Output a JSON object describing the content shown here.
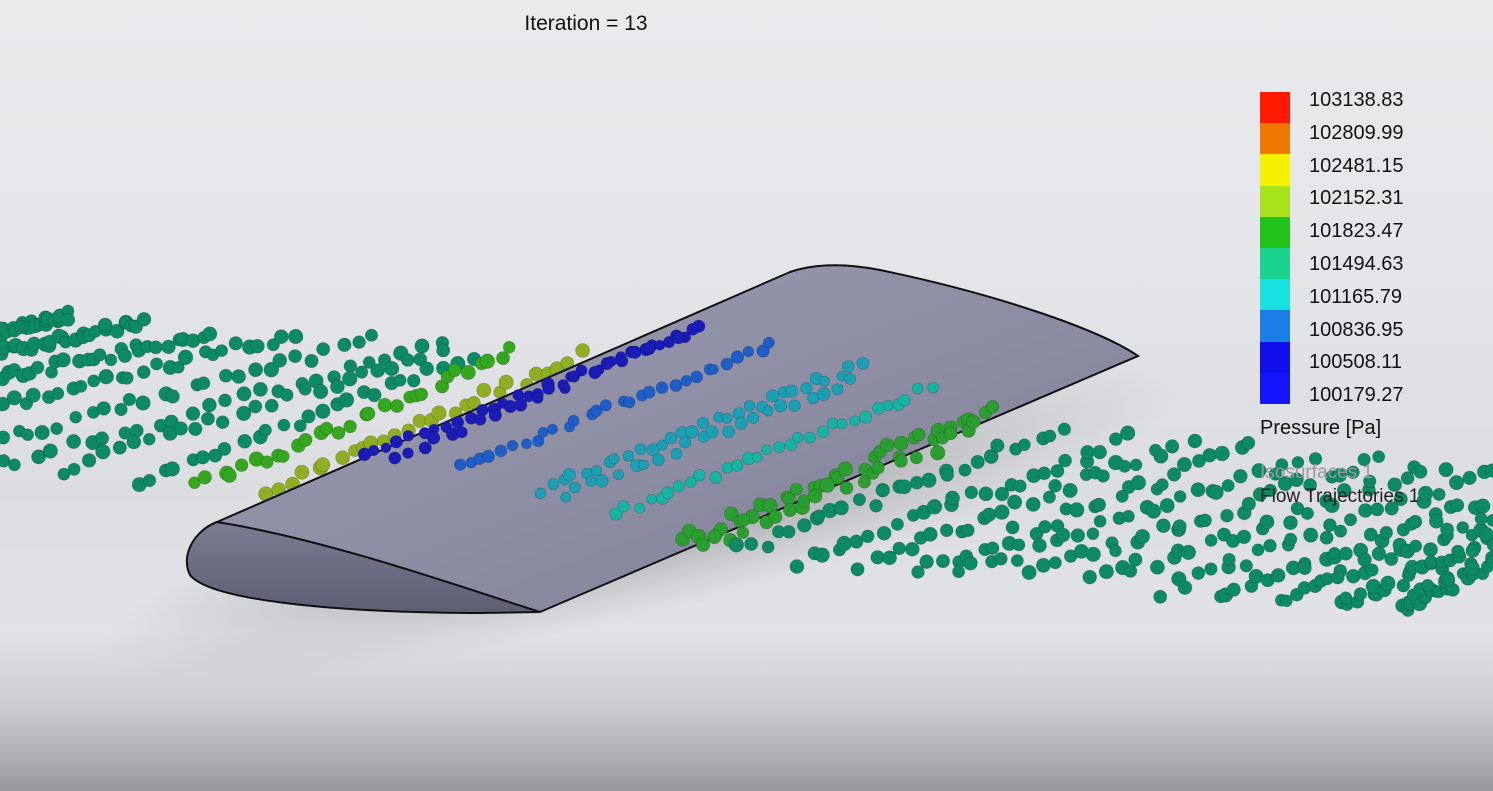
{
  "iteration_label": "Iteration = 13",
  "legend": {
    "title": "Pressure [Pa]",
    "ticks": [
      "103138.83",
      "102809.99",
      "102481.15",
      "102152.31",
      "101823.47",
      "101494.63",
      "101165.79",
      "100836.95",
      "100508.11",
      "100179.27"
    ],
    "colors": [
      "#ff1a00",
      "#f07800",
      "#f5f000",
      "#a8e21a",
      "#21c21a",
      "#19d38f",
      "#18e1e1",
      "#1b7de6",
      "#1010ee",
      "#1414ff"
    ],
    "display_items": [
      "Isosurfaces 1",
      "Flow Trajectories 1"
    ]
  },
  "scene": {
    "object": "wing-airfoil",
    "colors": {
      "free_stream": "#0b8a63",
      "free_stream_dark": "#076a4b",
      "upper_green": "#33a81e",
      "olive": "#8fae22",
      "dark_blue": "#1a1cb8",
      "mid_blue": "#1f5ec9",
      "teal": "#1b9fb3",
      "cyan_teal": "#17b3a3",
      "green": "#2a9e2e",
      "wing_top": "#8d8ea4",
      "wing_side": "#6e6f85"
    }
  }
}
